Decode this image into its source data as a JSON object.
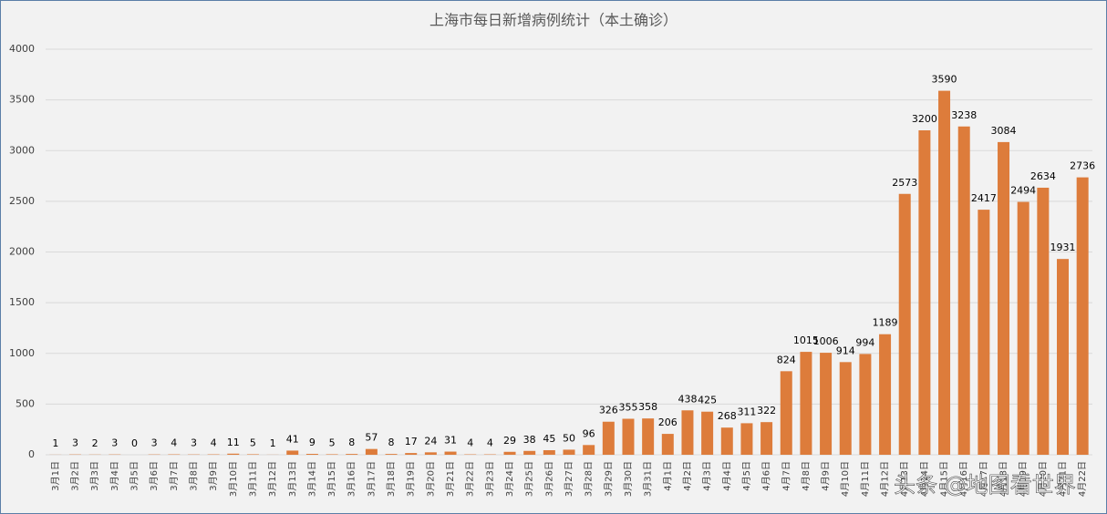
{
  "chart_data": {
    "type": "bar",
    "title": "上海市每日新增病例统计（本土确诊）",
    "categories": [
      "3月1日",
      "3月2日",
      "3月3日",
      "3月4日",
      "3月5日",
      "3月6日",
      "3月7日",
      "3月8日",
      "3月9日",
      "3月10日",
      "3月11日",
      "3月12日",
      "3月13日",
      "3月14日",
      "3月15日",
      "3月16日",
      "3月17日",
      "3月18日",
      "3月19日",
      "3月20日",
      "3月21日",
      "3月22日",
      "3月23日",
      "3月24日",
      "3月25日",
      "3月26日",
      "3月27日",
      "3月28日",
      "3月29日",
      "3月30日",
      "3月31日",
      "4月1日",
      "4月2日",
      "4月3日",
      "4月4日",
      "4月5日",
      "4月6日",
      "4月7日",
      "4月8日",
      "4月9日",
      "4月10日",
      "4月11日",
      "4月12日",
      "4月13日",
      "4月14日",
      "4月15日",
      "4月16日",
      "4月17日",
      "4月18日",
      "4月19日",
      "4月20日",
      "4月21日",
      "4月22日"
    ],
    "values": [
      1,
      3,
      2,
      3,
      0,
      3,
      4,
      3,
      4,
      11,
      5,
      1,
      41,
      9,
      5,
      8,
      57,
      8,
      17,
      24,
      31,
      4,
      4,
      29,
      38,
      45,
      50,
      96,
      326,
      355,
      358,
      206,
      438,
      425,
      268,
      311,
      322,
      824,
      1015,
      1006,
      914,
      994,
      1189,
      2573,
      3200,
      3590,
      3238,
      2417,
      3084,
      2494,
      2634,
      1931,
      2736
    ],
    "color": "#dd7c3b",
    "ylim": [
      0,
      4000
    ],
    "yticks": [
      0,
      500,
      1000,
      1500,
      2000,
      2500,
      3000,
      3500,
      4000
    ],
    "grid": true,
    "watermark": "头条 @地图看世界"
  }
}
